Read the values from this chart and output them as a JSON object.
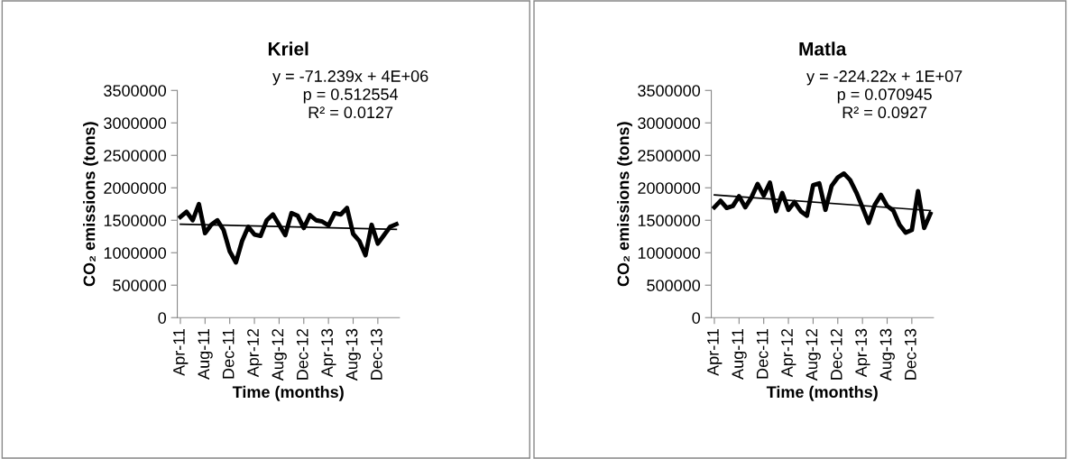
{
  "chart_data": [
    {
      "type": "line",
      "title": "Kriel",
      "xlabel": "Time (months)",
      "ylabel": "CO₂ emissions (tons)",
      "categories": [
        "Apr-11",
        null,
        null,
        null,
        "Aug-11",
        null,
        null,
        null,
        "Dec-11",
        null,
        null,
        null,
        "Apr-12",
        null,
        null,
        null,
        "Aug-12",
        null,
        null,
        null,
        "Dec-12",
        null,
        null,
        null,
        "Apr-13",
        null,
        null,
        null,
        "Aug-13",
        null,
        null,
        null,
        "Dec-13",
        null,
        null,
        null
      ],
      "series": [
        {
          "color": "#000000",
          "values": [
            1550000,
            1630000,
            1500000,
            1750000,
            1300000,
            1430000,
            1500000,
            1350000,
            1020000,
            850000,
            1180000,
            1400000,
            1280000,
            1260000,
            1500000,
            1590000,
            1430000,
            1270000,
            1610000,
            1570000,
            1380000,
            1580000,
            1500000,
            1480000,
            1420000,
            1610000,
            1590000,
            1690000,
            1290000,
            1180000,
            960000,
            1430000,
            1140000,
            1270000,
            1400000,
            1440000
          ]
        },
        {
          "color": "#000000",
          "values": [
            1440000,
            null,
            null,
            null,
            null,
            null,
            null,
            null,
            null,
            null,
            null,
            null,
            null,
            null,
            null,
            null,
            null,
            null,
            null,
            null,
            null,
            null,
            null,
            null,
            null,
            null,
            null,
            null,
            null,
            null,
            null,
            null,
            null,
            null,
            null,
            1360000
          ]
        }
      ],
      "ylim": [
        0,
        3500000
      ],
      "yticks": [
        0,
        500000,
        1000000,
        1500000,
        2000000,
        2500000,
        3000000,
        3500000
      ],
      "grid": false,
      "legend": false,
      "annotations": [
        "y = -71.239x + 4E+06",
        "p = 0.512554",
        "R² = 0.0127"
      ]
    },
    {
      "type": "line",
      "title": "Matla",
      "xlabel": "Time (months)",
      "ylabel": "CO₂ emissions (tons)",
      "categories": [
        "Apr-11",
        null,
        null,
        null,
        "Aug-11",
        null,
        null,
        null,
        "Dec-11",
        null,
        null,
        null,
        "Apr-12",
        null,
        null,
        null,
        "Aug-12",
        null,
        null,
        null,
        "Dec-12",
        null,
        null,
        null,
        "Apr-13",
        null,
        null,
        null,
        "Aug-13",
        null,
        null,
        null,
        "Dec-13",
        null,
        null,
        null
      ],
      "series": [
        {
          "color": "#000000",
          "values": [
            1700000,
            1800000,
            1690000,
            1720000,
            1870000,
            1700000,
            1850000,
            2060000,
            1880000,
            2080000,
            1640000,
            1920000,
            1660000,
            1780000,
            1640000,
            1570000,
            2040000,
            2070000,
            1660000,
            2030000,
            2160000,
            2220000,
            2120000,
            1930000,
            1700000,
            1460000,
            1740000,
            1890000,
            1720000,
            1650000,
            1430000,
            1310000,
            1350000,
            1950000,
            1380000,
            1600000
          ]
        },
        {
          "color": "#000000",
          "values": [
            1890000,
            null,
            null,
            null,
            null,
            null,
            null,
            null,
            null,
            null,
            null,
            null,
            null,
            null,
            null,
            null,
            null,
            null,
            null,
            null,
            null,
            null,
            null,
            null,
            null,
            null,
            null,
            null,
            null,
            null,
            null,
            null,
            null,
            null,
            null,
            1650000
          ]
        }
      ],
      "ylim": [
        0,
        3500000
      ],
      "yticks": [
        0,
        500000,
        1000000,
        1500000,
        2000000,
        2500000,
        3000000,
        3500000
      ],
      "grid": false,
      "legend": false,
      "annotations": [
        "y = -224.22x + 1E+07",
        "p = 0.070945",
        "R² = 0.0927"
      ]
    }
  ]
}
